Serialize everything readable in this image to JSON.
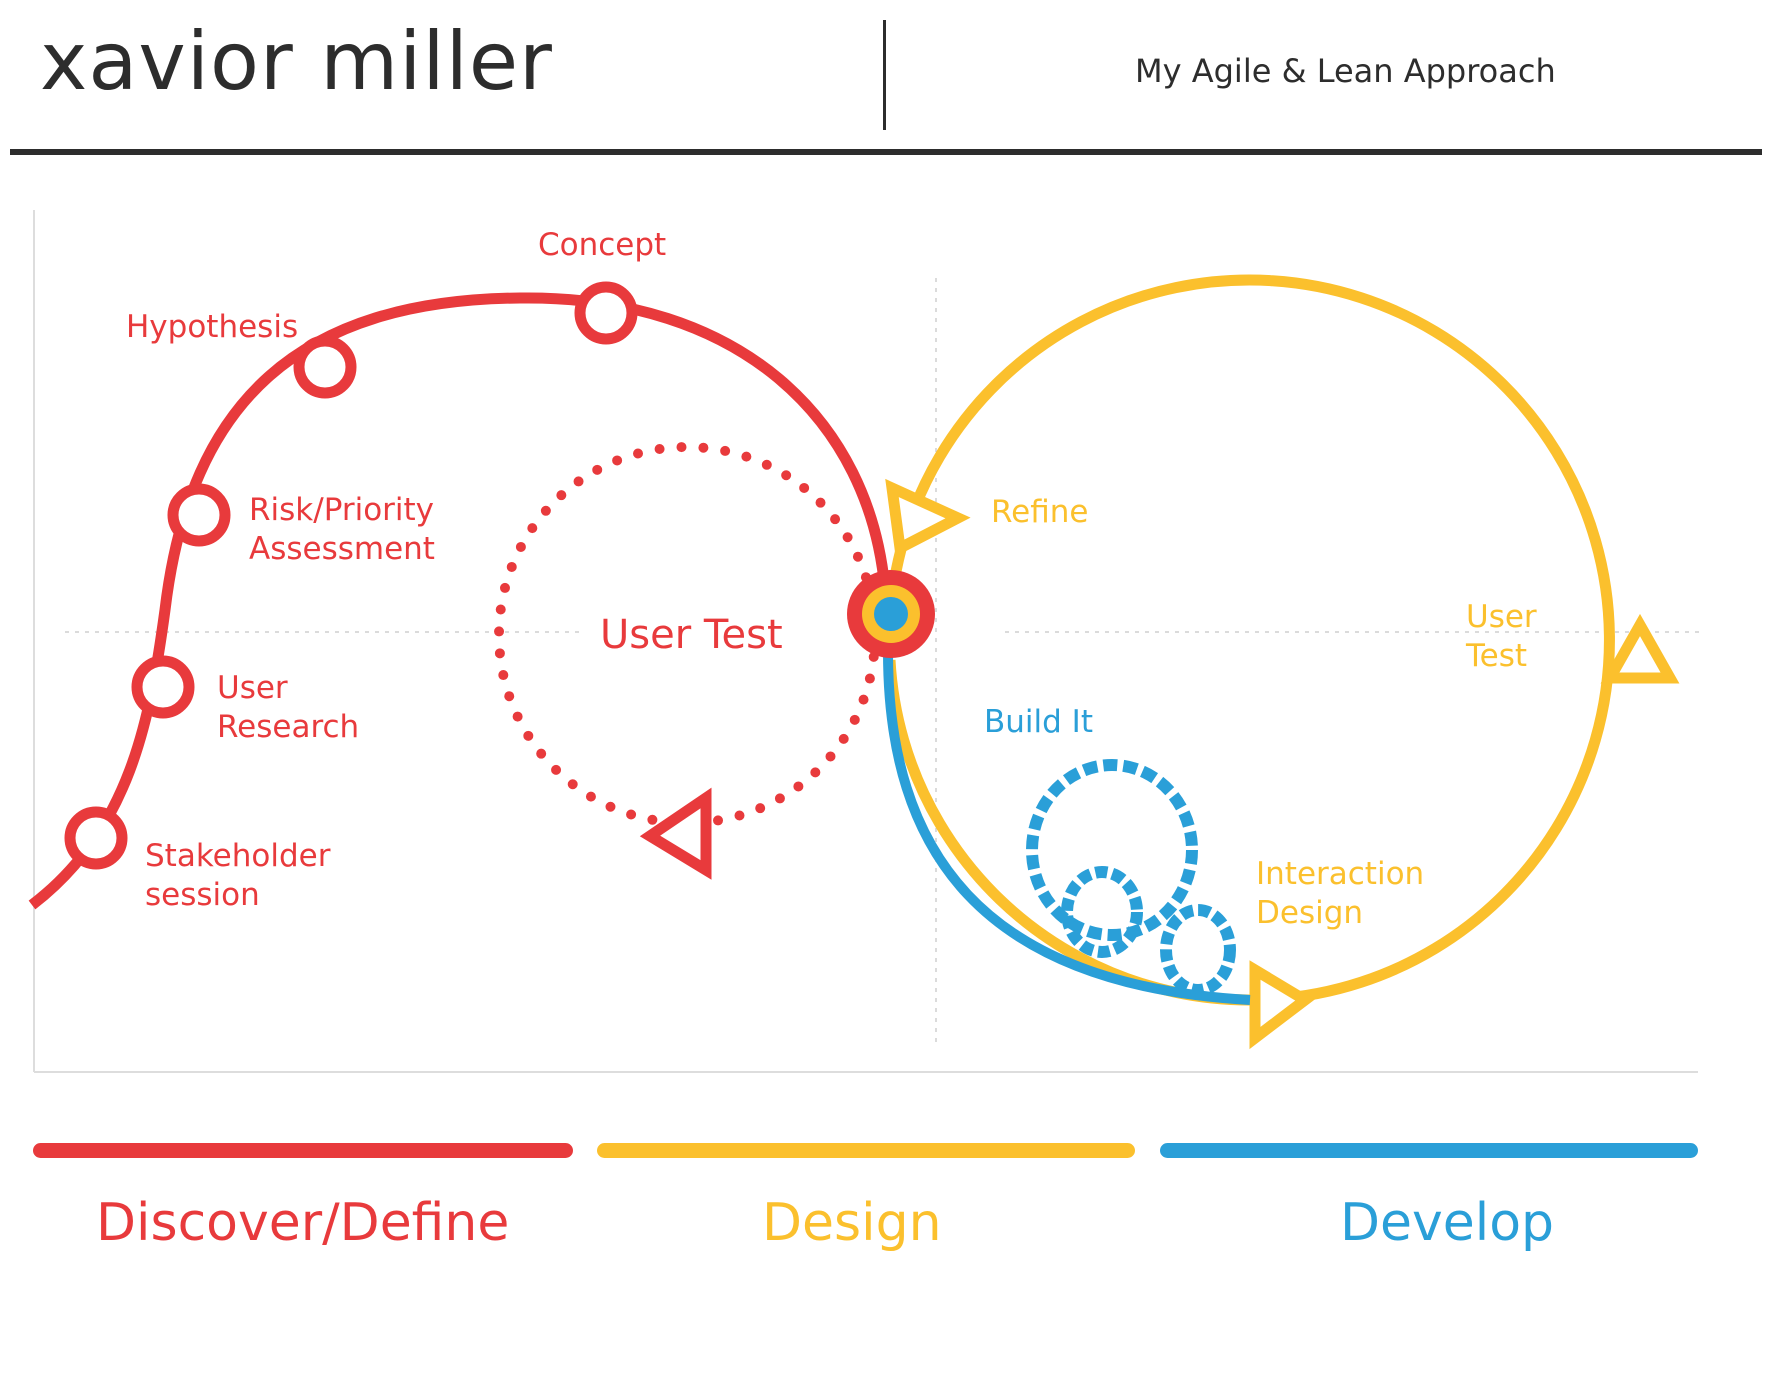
{
  "header": {
    "name": "xavior miller",
    "title": "My Agile & Lean Approach"
  },
  "diagram": {
    "discover_path": {
      "color": "#e83a3c",
      "steps": [
        "Stakeholder session",
        "User Research",
        "Risk/Priority Assessment",
        "Hypothesis",
        "Concept"
      ],
      "labels": {
        "stakeholder_1": "Stakeholder",
        "stakeholder_2": "session",
        "research_1": "User",
        "research_2": "Research",
        "risk_1": "Risk/Priority",
        "risk_2": "Assessment",
        "hypothesis": "Hypothesis",
        "concept": "Concept"
      },
      "inner_loop_label": "User Test"
    },
    "design_loop": {
      "color": "#fbc02d",
      "labels": {
        "refine": "Refine",
        "user_test_1": "User",
        "user_test_2": "Test",
        "interaction_1": "Interaction",
        "interaction_2": "Design"
      }
    },
    "develop_loop": {
      "color": "#2a9fd8",
      "label": "Build It"
    }
  },
  "phases": [
    {
      "label": "Discover/Define",
      "color": "#e83a3c"
    },
    {
      "label": "Design",
      "color": "#fbc02d"
    },
    {
      "label": "Develop",
      "color": "#2a9fd8"
    }
  ]
}
